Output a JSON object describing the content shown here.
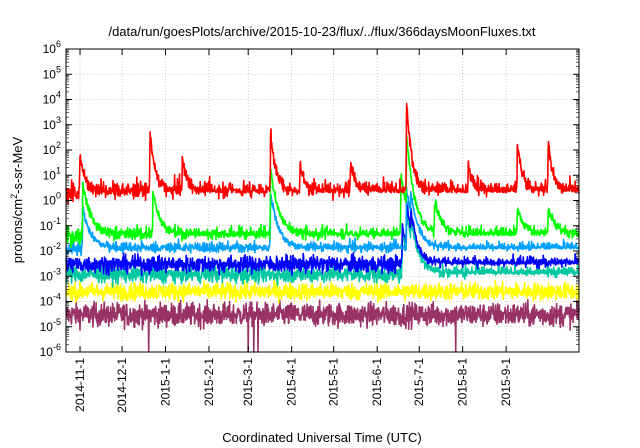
{
  "chart_data": {
    "type": "line",
    "title": "/data/run/goesPlots/archive/2015-10-23/flux/../flux/366daysMoonFluxes.txt",
    "xlabel": "Coordinated Universal Time (UTC)",
    "ylabel": {
      "main": "protons/cm",
      "sup": "2",
      "rest": "-s-sr-MeV"
    },
    "xlim": [
      "2014-10-22",
      "2015-10-23"
    ],
    "ylim": [
      1e-06,
      1000000.0
    ],
    "yscale": "log",
    "grid": true,
    "x_ticks": [
      "2014-11-1",
      "2014-12-1",
      "2015-1-1",
      "2015-2-1",
      "2015-3-1",
      "2015-4-1",
      "2015-5-1",
      "2015-6-1",
      "2015-7-1",
      "2015-8-1",
      "2015-9-1"
    ],
    "y_ticks": [
      {
        "value": 1e-06,
        "base": "10",
        "exp": "-6"
      },
      {
        "value": 1e-05,
        "base": "10",
        "exp": "-5"
      },
      {
        "value": 0.0001,
        "base": "10",
        "exp": "-4"
      },
      {
        "value": 0.001,
        "base": "10",
        "exp": "-3"
      },
      {
        "value": 0.01,
        "base": "10",
        "exp": "-2"
      },
      {
        "value": 0.1,
        "base": "10",
        "exp": "-1"
      },
      {
        "value": 1,
        "base": "10",
        "exp": "0"
      },
      {
        "value": 10,
        "base": "10",
        "exp": "1"
      },
      {
        "value": 100,
        "base": "10",
        "exp": "2"
      },
      {
        "value": 1000,
        "base": "10",
        "exp": "3"
      },
      {
        "value": 10000,
        "base": "10",
        "exp": "4"
      },
      {
        "value": 100000,
        "base": "10",
        "exp": "5"
      },
      {
        "value": 1000000,
        "base": "10",
        "exp": "6"
      }
    ],
    "series": [
      {
        "color": "#993366",
        "baseline": 3e-05,
        "noise": 0.55,
        "decay": 12,
        "events": [],
        "dropouts": [
          {
            "x": "2014-12-20",
            "y": 1e-06
          },
          {
            "x": "2015-3-1",
            "y": 1e-06
          },
          {
            "x": "2015-3-5",
            "y": 1e-06
          },
          {
            "x": "2015-3-8",
            "y": 1e-06
          },
          {
            "x": "2015-7-27",
            "y": 1e-06
          }
        ]
      },
      {
        "color": "#ffff00",
        "baseline": 0.00025,
        "noise": 0.4,
        "decay": 12,
        "events": [],
        "dropouts": []
      },
      {
        "color": "#00c8a0",
        "baseline": 0.0012,
        "noise": 0.4,
        "decay": 6,
        "events": [
          {
            "x": "2015-6-19",
            "peak": 0.05
          },
          {
            "x": "2015-6-22",
            "peak": 0.4
          },
          {
            "x": "2015-6-25",
            "peak": 0.2
          }
        ],
        "dropouts": []
      },
      {
        "color": "#0000ff",
        "baseline": 0.003,
        "noise": 0.4,
        "decay": 5,
        "events": [
          {
            "x": "2015-6-19",
            "peak": 0.1
          },
          {
            "x": "2015-6-22",
            "peak": 1.0
          },
          {
            "x": "2015-6-25",
            "peak": 0.5
          }
        ],
        "dropouts": []
      },
      {
        "color": "#00a0ff",
        "baseline": 0.012,
        "noise": 0.35,
        "decay": 6,
        "events": [
          {
            "x": "2014-11-3",
            "peak": 0.5
          },
          {
            "x": "2015-3-17",
            "peak": 2.0
          },
          {
            "x": "2015-6-22",
            "peak": 3.0
          },
          {
            "x": "2015-6-25",
            "peak": 2.0
          }
        ],
        "dropouts": []
      },
      {
        "color": "#00ff00",
        "baseline": 0.04,
        "noise": 0.45,
        "decay": 6,
        "events": [
          {
            "x": "2014-11-3",
            "peak": 5.0
          },
          {
            "x": "2014-12-23",
            "peak": 2.0
          },
          {
            "x": "2015-3-17",
            "peak": 20.0
          },
          {
            "x": "2015-6-18",
            "peak": 10.0
          },
          {
            "x": "2015-6-22",
            "peak": 400.0
          },
          {
            "x": "2015-7-12",
            "peak": 1.0
          },
          {
            "x": "2015-9-9",
            "peak": 0.5
          },
          {
            "x": "2015-10-1",
            "peak": 0.5
          }
        ],
        "dropouts": []
      },
      {
        "color": "#ff0000",
        "baseline": 2.0,
        "noise": 0.6,
        "decay": 4,
        "events": [
          {
            "x": "2014-11-1",
            "peak": 70.0
          },
          {
            "x": "2014-12-21",
            "peak": 500.0
          },
          {
            "x": "2015-1-13",
            "peak": 50.0
          },
          {
            "x": "2015-3-17",
            "peak": 500.0
          },
          {
            "x": "2015-4-7",
            "peak": 30.0
          },
          {
            "x": "2015-5-13",
            "peak": 30.0
          },
          {
            "x": "2015-6-22",
            "peak": 9000.0
          },
          {
            "x": "2015-8-5",
            "peak": 30.0
          },
          {
            "x": "2015-9-9",
            "peak": 200.0
          },
          {
            "x": "2015-10-1",
            "peak": 200.0
          }
        ],
        "dropouts": []
      }
    ]
  }
}
